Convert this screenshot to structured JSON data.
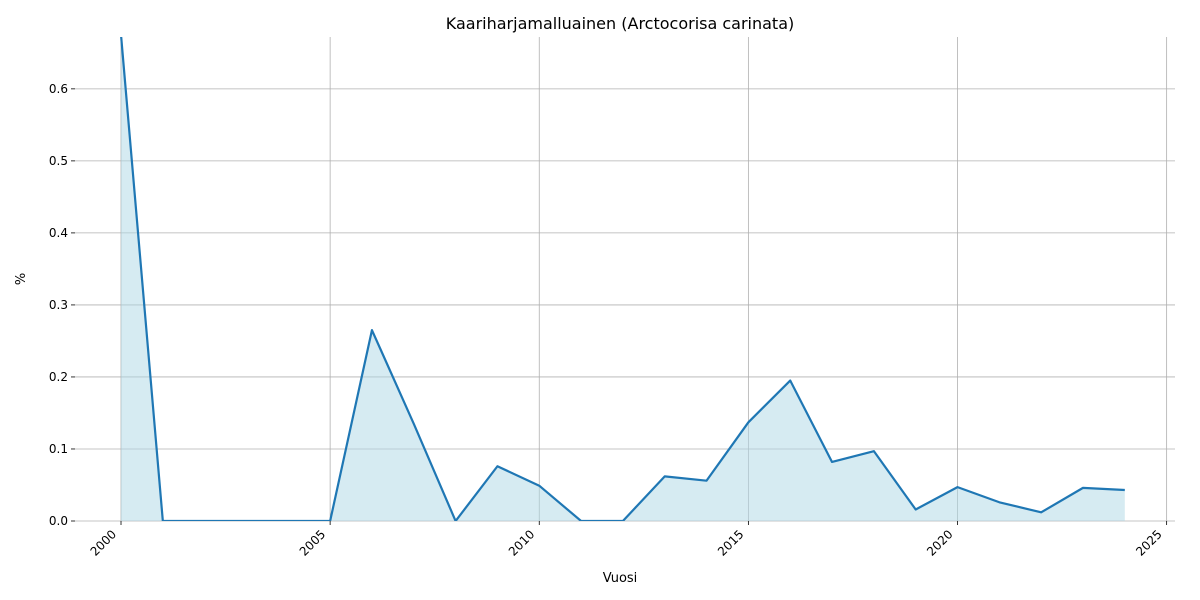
{
  "chart_data": {
    "type": "area",
    "title": "Kaariharjamalluainen (Arctocorisa carinata)",
    "xlabel": "Vuosi",
    "ylabel": "%",
    "xlim": [
      1998.9,
      2025.2
    ],
    "ylim": [
      0,
      0.672
    ],
    "xticks": [
      2000,
      2005,
      2010,
      2015,
      2020,
      2025
    ],
    "xtick_labels": [
      "2000",
      "2005",
      "2010",
      "2015",
      "2020",
      "2025"
    ],
    "yticks": [
      0.0,
      0.1,
      0.2,
      0.3,
      0.4,
      0.5,
      0.6
    ],
    "ytick_labels": [
      "0.0",
      "0.1",
      "0.2",
      "0.3",
      "0.4",
      "0.5",
      "0.6"
    ],
    "grid": true,
    "line_color": "#1f77b4",
    "fill_color": "#add8e6",
    "series": [
      {
        "x": [
          2000,
          2001,
          2002,
          2003,
          2004,
          2005,
          2006,
          2007,
          2008,
          2009,
          2010,
          2011,
          2012,
          2013,
          2014,
          2015,
          2016,
          2017,
          2018,
          2019,
          2020,
          2021,
          2022,
          2023,
          2024
        ],
        "values": [
          0.675,
          0.0,
          0.0,
          0.0,
          0.0,
          0.0,
          0.265,
          0.135,
          0.0,
          0.076,
          0.049,
          0.0,
          0.0,
          0.062,
          0.056,
          0.137,
          0.195,
          0.082,
          0.097,
          0.016,
          0.047,
          0.026,
          0.012,
          0.046,
          0.043
        ]
      }
    ]
  }
}
